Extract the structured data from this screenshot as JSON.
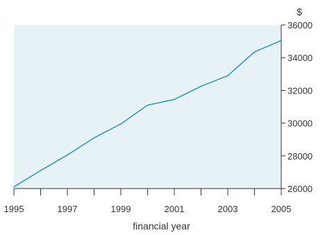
{
  "chart_data": {
    "type": "line",
    "title": "",
    "xlabel": "financial year",
    "ylabel": "$",
    "grid": false,
    "colors": {
      "background": "#e6f2f6",
      "line": "#1e8eb8",
      "axis": "#333333",
      "text": "#333333"
    },
    "x": [
      1995,
      1996,
      1997,
      1998,
      1999,
      2000,
      2001,
      2002,
      2003,
      2004,
      2005
    ],
    "xlim": [
      1995,
      2005
    ],
    "ylim": [
      26000,
      36000
    ],
    "x_ticks": [
      1995,
      1996,
      1997,
      1998,
      1999,
      2000,
      2001,
      2002,
      2003,
      2004,
      2005
    ],
    "x_tick_labels": [
      "1995",
      "",
      "1997",
      "",
      "1999",
      "",
      "2001",
      "",
      "2003",
      "",
      "2005"
    ],
    "y_ticks": [
      26000,
      28000,
      30000,
      32000,
      34000,
      36000
    ],
    "y_tick_labels": [
      "26000",
      "28000",
      "30000",
      "32000",
      "34000",
      "36000"
    ],
    "series": [
      {
        "values": [
          26100,
          27100,
          28050,
          29100,
          29950,
          31100,
          31450,
          32250,
          32900,
          34350,
          35050
        ]
      }
    ]
  }
}
